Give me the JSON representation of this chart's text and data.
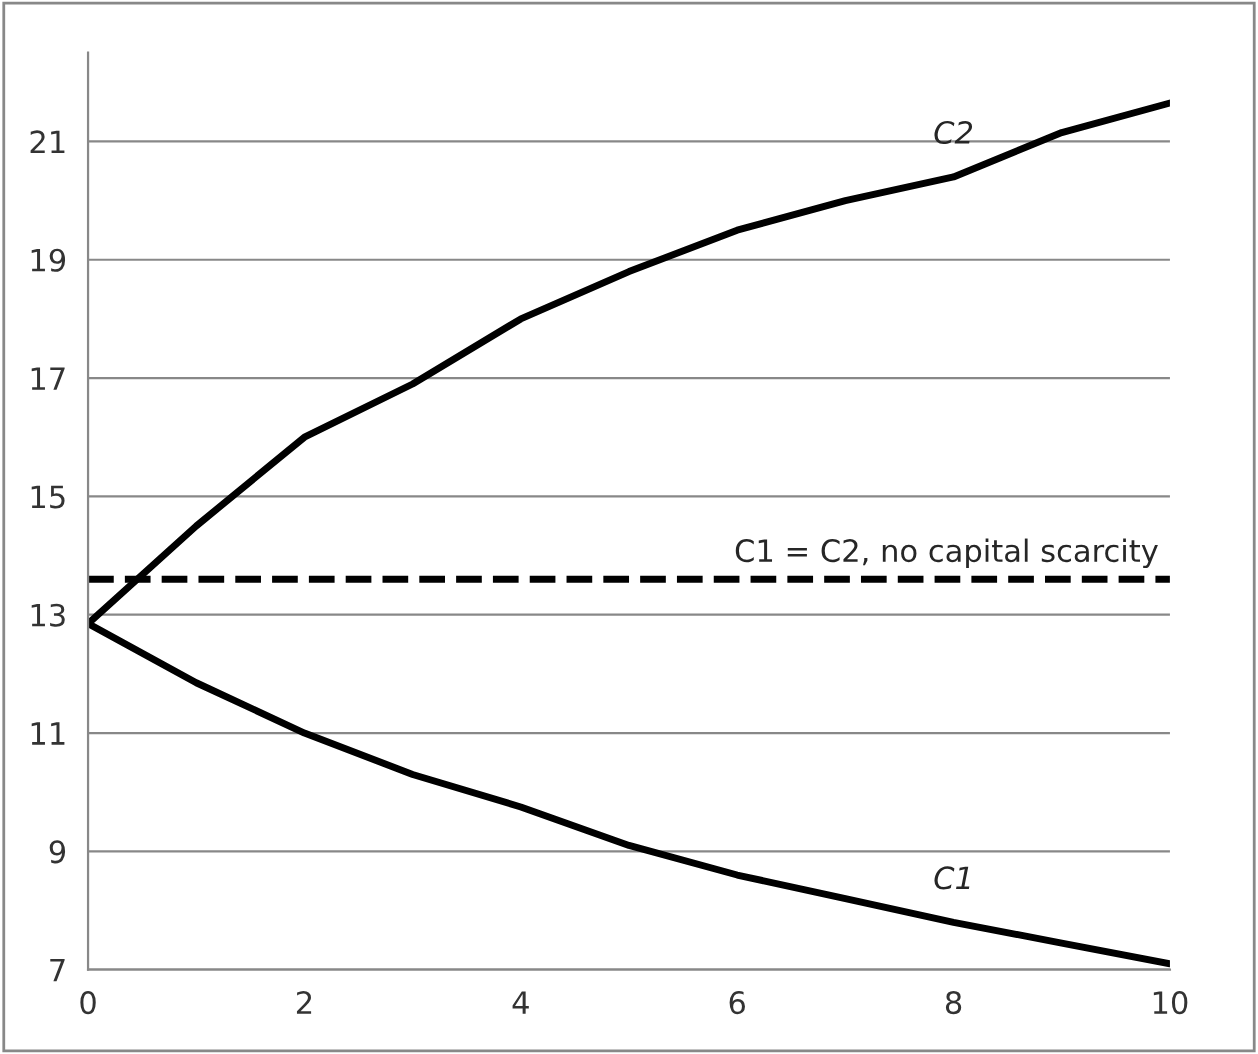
{
  "chart_data": {
    "type": "line",
    "x": [
      0,
      1,
      2,
      3,
      4,
      5,
      6,
      7,
      8,
      9,
      10
    ],
    "series": [
      {
        "name": "C2",
        "color": "#000000",
        "values": [
          12.85,
          14.5,
          16.0,
          16.9,
          18.0,
          18.8,
          19.5,
          20.0,
          20.4,
          21.15,
          21.65
        ]
      },
      {
        "name": "C1",
        "color": "#000000",
        "values": [
          12.85,
          11.85,
          11.0,
          10.3,
          9.75,
          9.1,
          8.6,
          8.2,
          7.8,
          7.45,
          7.1
        ]
      }
    ],
    "ref_lines": [
      {
        "axis": "y",
        "value": 13.6,
        "label": "C1 = C2, no capital scarcity",
        "color": "#000000",
        "line_style": "dashed"
      }
    ],
    "xlim": [
      0,
      10
    ],
    "xticks": [
      0,
      2,
      4,
      6,
      8,
      10
    ],
    "ylim": [
      7,
      22.5
    ],
    "yticks": [
      7,
      9,
      11,
      13,
      15,
      17,
      19,
      21
    ],
    "grid": "y",
    "legend": false,
    "line_style": "solid",
    "marker": "none"
  }
}
